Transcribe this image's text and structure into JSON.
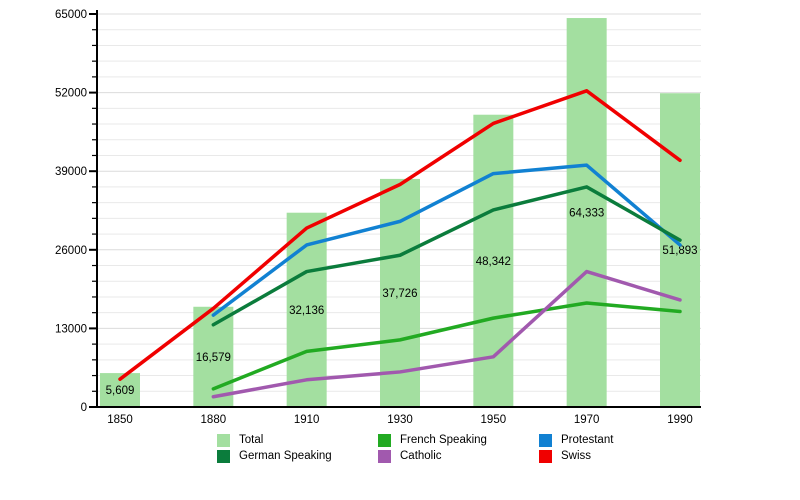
{
  "chart_data": {
    "type": "bar+line",
    "title": "",
    "categories": [
      "1850",
      "1880",
      "1910",
      "1930",
      "1950",
      "1970",
      "1990"
    ],
    "bars": {
      "name": "Total",
      "color": "#a3dfa0",
      "values": [
        5609,
        16579,
        32136,
        37726,
        48342,
        64333,
        51893
      ],
      "labels": [
        "5,609",
        "16,579",
        "32,136",
        "37,726",
        "48,342",
        "64,333",
        "51,893"
      ]
    },
    "series": [
      {
        "name": "French Speaking",
        "color": "#22aa22",
        "values": [
          null,
          3000,
          9200,
          11100,
          14700,
          17200,
          15800
        ]
      },
      {
        "name": "Protestant",
        "color": "#1181d2",
        "values": [
          null,
          15200,
          26800,
          30700,
          38600,
          40000,
          26800
        ]
      },
      {
        "name": "Catholic",
        "color": "#a159ae",
        "values": [
          null,
          1700,
          4500,
          5800,
          8300,
          22400,
          17700
        ]
      },
      {
        "name": "German Speaking",
        "color": "#0b7c3c",
        "values": [
          null,
          13600,
          22400,
          25100,
          32600,
          36400,
          27600
        ]
      },
      {
        "name": "Swiss",
        "color": "#f00000",
        "values": [
          4600,
          16300,
          29600,
          36800,
          46900,
          52300,
          40800
        ]
      }
    ],
    "yticks": [
      0,
      13000,
      26000,
      39000,
      52000,
      65000
    ],
    "ytick_labels": [
      "0",
      "13000",
      "26000",
      "39000",
      "52000",
      "65000"
    ],
    "ylim": [
      0,
      65000
    ],
    "minor_grid_step": 2600,
    "grid": true,
    "legend_position": "bottom",
    "legend": [
      {
        "label": "Total",
        "color": "#a3dfa0"
      },
      {
        "label": "German Speaking",
        "color": "#0b7c3c"
      },
      {
        "label": "French Speaking",
        "color": "#22aa22"
      },
      {
        "label": "Catholic",
        "color": "#a159ae"
      },
      {
        "label": "Protestant",
        "color": "#1181d2"
      },
      {
        "label": "Swiss",
        "color": "#f00000"
      }
    ]
  },
  "colors": {
    "axis": "#000000",
    "minor_grid": "#e9e9e9",
    "major_grid": "#dcdcdc",
    "label_text": "#000000"
  }
}
